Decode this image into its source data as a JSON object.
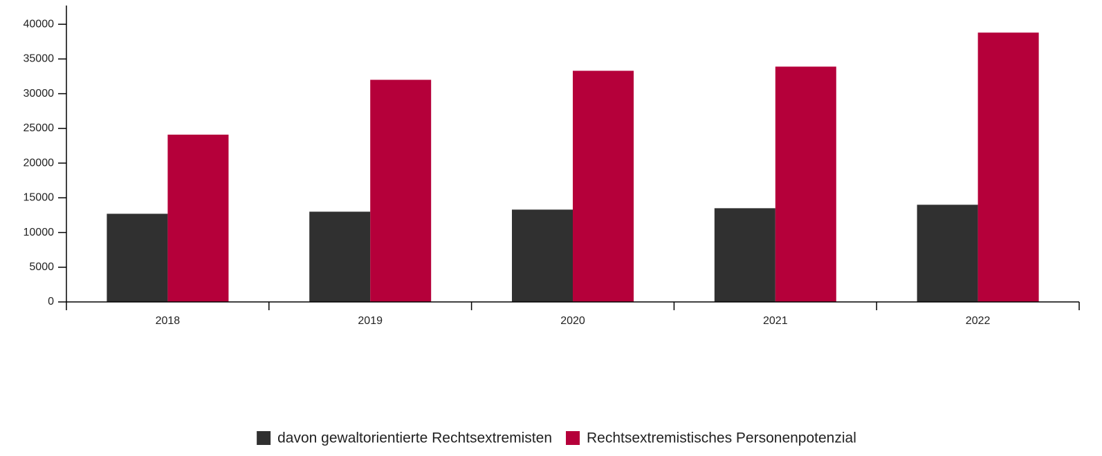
{
  "chart_data": {
    "type": "bar",
    "categories": [
      "2018",
      "2019",
      "2020",
      "2021",
      "2022"
    ],
    "series": [
      {
        "name": "davon gewaltorientierte Rechtsextremisten",
        "color": "#303030",
        "values": [
          12700,
          13000,
          13300,
          13500,
          14000
        ]
      },
      {
        "name": "Rechtsextremistisches Personenpotenzial",
        "color": "#b5003a",
        "values": [
          24100,
          32000,
          33300,
          33900,
          38800
        ]
      }
    ],
    "ylim": [
      0,
      42700
    ],
    "yticks": [
      0,
      5000,
      10000,
      15000,
      20000,
      25000,
      30000,
      35000,
      40000
    ],
    "legend": "bottom"
  }
}
